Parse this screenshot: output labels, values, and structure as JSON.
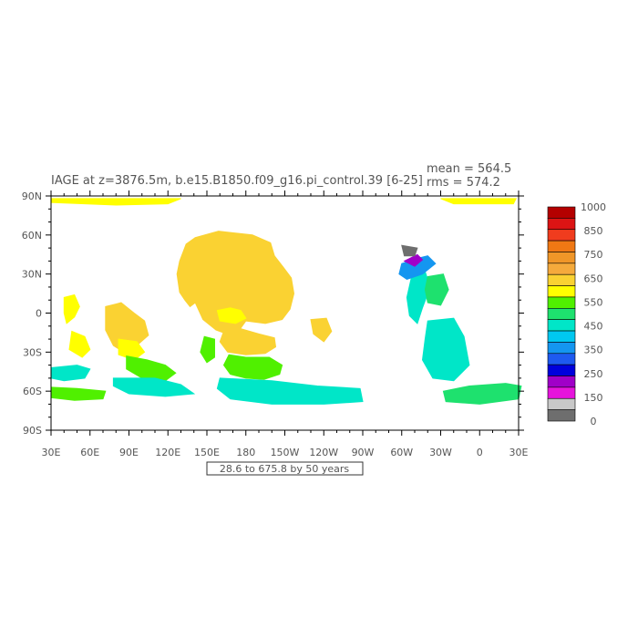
{
  "title": "IAGE at z=3876.5m, b.e15.B1850.f09_g16.pi_control.39 [6-25]",
  "stats": {
    "mean": "mean = 564.5",
    "rms": "rms = 574.2"
  },
  "range_label": "28.6 to 675.8 by 50 years",
  "chart_data": {
    "type": "heatmap",
    "variable": "IAGE",
    "x_ticks": [
      "30E",
      "60E",
      "90E",
      "120E",
      "150E",
      "180",
      "150W",
      "120W",
      "90W",
      "60W",
      "30W",
      "0",
      "30E"
    ],
    "y_ticks": [
      "90N",
      "60N",
      "30N",
      "0",
      "30S",
      "60S",
      "90S"
    ],
    "colorbar": {
      "labels": [
        "1000",
        "850",
        "750",
        "650",
        "550",
        "450",
        "350",
        "250",
        "150",
        "0"
      ],
      "colors_top_to_bottom": [
        "#b40000",
        "#dc1414",
        "#f03c1e",
        "#f07814",
        "#f09628",
        "#f5aa3c",
        "#fad232",
        "#ffff00",
        "#50f000",
        "#1ee16e",
        "#00e6c8",
        "#00c8f0",
        "#1496f0",
        "#1e5af0",
        "#0000dc",
        "#a000c8",
        "#e614dc",
        "#c8c8c8",
        "#6e6e6e"
      ]
    },
    "regions": [
      {
        "name": "north-pacific",
        "color": "#fad232",
        "pts": [
          [
            129,
            40
          ],
          [
            134,
            53
          ],
          [
            141,
            58
          ],
          [
            159,
            63
          ],
          [
            185,
            60
          ],
          [
            199,
            54
          ],
          [
            202,
            44
          ],
          [
            209,
            35
          ],
          [
            215,
            27
          ],
          [
            217,
            15
          ],
          [
            214,
            3
          ],
          [
            208,
            -5
          ],
          [
            195,
            -8
          ],
          [
            180,
            -6
          ],
          [
            175,
            -13
          ],
          [
            168,
            -17
          ],
          [
            157,
            -13
          ],
          [
            147,
            -5
          ],
          [
            141,
            8
          ],
          [
            137,
            5
          ],
          [
            133,
            10
          ],
          [
            129,
            16
          ],
          [
            127,
            30
          ]
        ]
      },
      {
        "name": "central-pacific-south",
        "color": "#fad232",
        "pts": [
          [
            163,
            -14
          ],
          [
            176,
            -12
          ],
          [
            190,
            -16
          ],
          [
            202,
            -19
          ],
          [
            203,
            -26
          ],
          [
            195,
            -31
          ],
          [
            180,
            -32
          ],
          [
            166,
            -30
          ],
          [
            160,
            -22
          ]
        ]
      },
      {
        "name": "pacific-green",
        "color": "#50f000",
        "pts": [
          [
            167,
            -32
          ],
          [
            180,
            -34
          ],
          [
            198,
            -34
          ],
          [
            208,
            -40
          ],
          [
            206,
            -47
          ],
          [
            194,
            -51
          ],
          [
            180,
            -50
          ],
          [
            168,
            -47
          ],
          [
            163,
            -40
          ]
        ]
      },
      {
        "name": "pacific-yellow-patch",
        "color": "#ffff00",
        "pts": [
          [
            158,
            2
          ],
          [
            168,
            4
          ],
          [
            176,
            2
          ],
          [
            180,
            -4
          ],
          [
            172,
            -8
          ],
          [
            160,
            -6
          ]
        ]
      },
      {
        "name": "pacific-small-green",
        "color": "#50f000",
        "pts": [
          [
            148,
            -18
          ],
          [
            156,
            -20
          ],
          [
            156,
            -34
          ],
          [
            150,
            -38
          ],
          [
            145,
            -30
          ]
        ]
      },
      {
        "name": "arabian-indian-orange",
        "color": "#fad232",
        "pts": [
          [
            72,
            5
          ],
          [
            84,
            8
          ],
          [
            94,
            0
          ],
          [
            102,
            -6
          ],
          [
            105,
            -17
          ],
          [
            97,
            -24
          ],
          [
            86,
            -30
          ],
          [
            78,
            -25
          ],
          [
            72,
            -13
          ]
        ]
      },
      {
        "name": "indian-yellow",
        "color": "#ffff00",
        "pts": [
          [
            82,
            -20
          ],
          [
            96,
            -22
          ],
          [
            102,
            -30
          ],
          [
            94,
            -36
          ],
          [
            82,
            -32
          ]
        ]
      },
      {
        "name": "west-indian-yellow",
        "color": "#ffff00",
        "pts": [
          [
            40,
            12
          ],
          [
            48,
            14
          ],
          [
            52,
            5
          ],
          [
            48,
            -3
          ],
          [
            42,
            -8
          ],
          [
            40,
            0
          ]
        ]
      },
      {
        "name": "madagascar-yellow",
        "color": "#ffff00",
        "pts": [
          [
            46,
            -14
          ],
          [
            56,
            -18
          ],
          [
            60,
            -28
          ],
          [
            54,
            -34
          ],
          [
            44,
            -28
          ]
        ]
      },
      {
        "name": "east-indian-green",
        "color": "#50f000",
        "pts": [
          [
            88,
            -33
          ],
          [
            104,
            -36
          ],
          [
            118,
            -40
          ],
          [
            126,
            -46
          ],
          [
            118,
            -52
          ],
          [
            100,
            -50
          ],
          [
            88,
            -43
          ]
        ]
      },
      {
        "name": "south-indian-cyan",
        "color": "#00e6c8",
        "pts": [
          [
            30,
            -42
          ],
          [
            50,
            -40
          ],
          [
            60,
            -43
          ],
          [
            56,
            -50
          ],
          [
            40,
            -52
          ],
          [
            30,
            -50
          ]
        ]
      },
      {
        "name": "south-indian-green",
        "color": "#50f000",
        "pts": [
          [
            30,
            -57
          ],
          [
            50,
            -58
          ],
          [
            72,
            -60
          ],
          [
            70,
            -66
          ],
          [
            48,
            -67
          ],
          [
            30,
            -65
          ]
        ]
      },
      {
        "name": "southern-cyan-1",
        "color": "#00e6c8",
        "pts": [
          [
            78,
            -50
          ],
          [
            110,
            -50
          ],
          [
            130,
            -55
          ],
          [
            140,
            -62
          ],
          [
            118,
            -64
          ],
          [
            90,
            -62
          ],
          [
            78,
            -56
          ]
        ]
      },
      {
        "name": "southern-cyan-2",
        "color": "#00e6c8",
        "pts": [
          [
            160,
            -50
          ],
          [
            200,
            -52
          ],
          [
            235,
            -56
          ],
          [
            268,
            -58
          ],
          [
            270,
            -68
          ],
          [
            240,
            -70
          ],
          [
            200,
            -70
          ],
          [
            168,
            -66
          ],
          [
            158,
            -58
          ]
        ]
      },
      {
        "name": "east-pacific-yellow",
        "color": "#fad232",
        "pts": [
          [
            230,
            -5
          ],
          [
            242,
            -4
          ],
          [
            246,
            -14
          ],
          [
            240,
            -22
          ],
          [
            232,
            -16
          ]
        ]
      },
      {
        "name": "north-atlantic-cyan",
        "color": "#00e6c8",
        "pts": [
          [
            308,
            30
          ],
          [
            318,
            32
          ],
          [
            322,
            20
          ],
          [
            316,
            4
          ],
          [
            312,
            -8
          ],
          [
            306,
            -2
          ],
          [
            304,
            12
          ]
        ]
      },
      {
        "name": "atlantic-blue-north",
        "color": "#1496f0",
        "pts": [
          [
            300,
            38
          ],
          [
            312,
            42
          ],
          [
            320,
            44
          ],
          [
            326,
            38
          ],
          [
            316,
            30
          ],
          [
            304,
            26
          ],
          [
            298,
            30
          ]
        ]
      },
      {
        "name": "atlantic-green",
        "color": "#1ee16e",
        "pts": [
          [
            320,
            28
          ],
          [
            332,
            30
          ],
          [
            336,
            18
          ],
          [
            330,
            6
          ],
          [
            320,
            8
          ],
          [
            318,
            18
          ]
        ]
      },
      {
        "name": "south-atlantic-cyan",
        "color": "#00e6c8",
        "pts": [
          [
            320,
            -6
          ],
          [
            340,
            -4
          ],
          [
            348,
            -18
          ],
          [
            352,
            -40
          ],
          [
            340,
            -52
          ],
          [
            324,
            -50
          ],
          [
            316,
            -36
          ],
          [
            318,
            -20
          ]
        ]
      },
      {
        "name": "south-atlantic-green",
        "color": "#1ee16e",
        "pts": [
          [
            332,
            -60
          ],
          [
            352,
            -56
          ],
          [
            380,
            -54
          ],
          [
            392,
            -56
          ],
          [
            390,
            -66
          ],
          [
            360,
            -70
          ],
          [
            334,
            -68
          ]
        ]
      },
      {
        "name": "labrador-purple",
        "color": "#a000c8",
        "pts": [
          [
            302,
            40
          ],
          [
            312,
            45
          ],
          [
            316,
            41
          ],
          [
            310,
            36
          ]
        ]
      },
      {
        "name": "arctic-gray",
        "color": "#6e6e6e",
        "pts": [
          [
            300,
            52
          ],
          [
            312,
            50
          ],
          [
            310,
            44
          ],
          [
            302,
            44
          ]
        ]
      },
      {
        "name": "arctic-yellow",
        "color": "#ffff00",
        "pts": [
          [
            30,
            88
          ],
          [
            130,
            88
          ],
          [
            120,
            84
          ],
          [
            80,
            83
          ],
          [
            30,
            85
          ]
        ]
      },
      {
        "name": "arctic-yellow-east",
        "color": "#ffff00",
        "pts": [
          [
            330,
            88
          ],
          [
            388,
            88
          ],
          [
            386,
            84
          ],
          [
            340,
            84
          ]
        ]
      }
    ]
  }
}
